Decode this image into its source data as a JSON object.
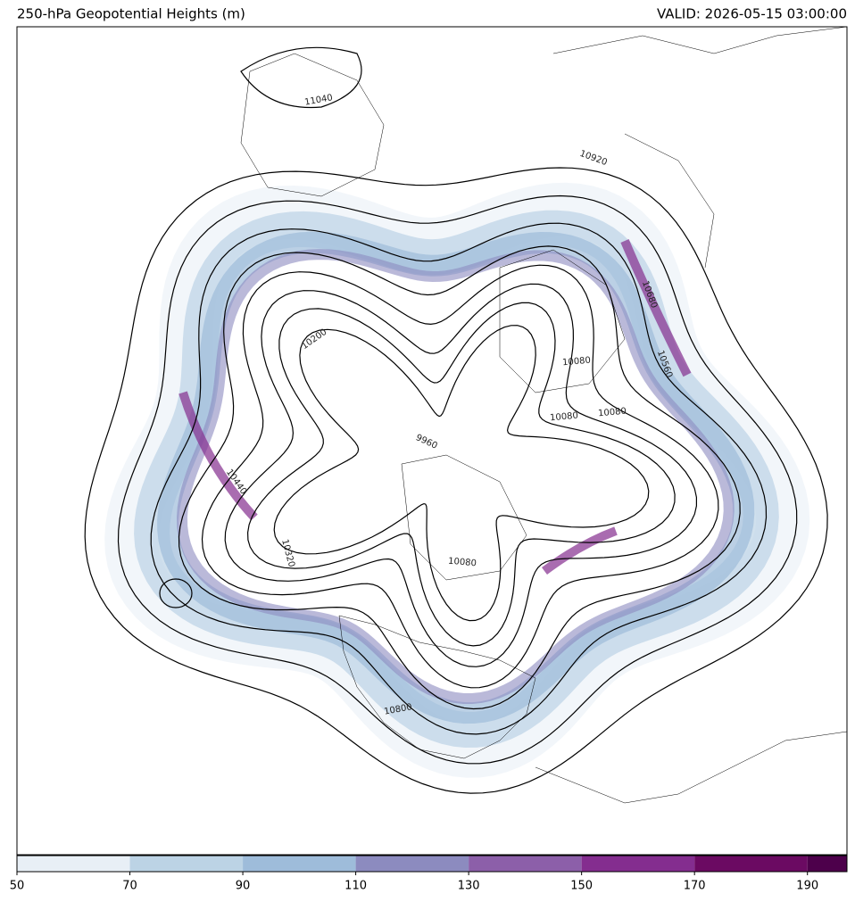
{
  "title_left": "250-hPa Geopotential Heights (m)",
  "title_right": "VALID: 2026-05-15 03:00:00",
  "map": {
    "contour_labels": [
      11040,
      10920,
      10680,
      10560,
      10200,
      10080,
      10080,
      10080,
      9960,
      10440,
      10320,
      10080,
      10800
    ]
  },
  "colorbar": {
    "range": [
      50,
      197
    ],
    "ticks": [
      50,
      70,
      90,
      110,
      130,
      150,
      170,
      190
    ],
    "colors": [
      "#e8eff6",
      "#bcd3e5",
      "#9ebcda",
      "#8c8bbf",
      "#8c5fa9",
      "#842d8f",
      "#6b0a62",
      "#4d004b"
    ]
  }
}
